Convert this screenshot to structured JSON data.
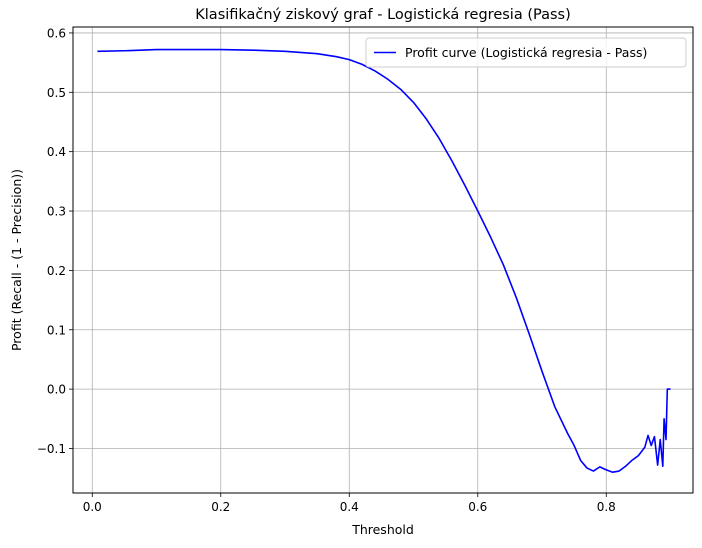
{
  "chart_data": {
    "type": "line",
    "title": "Klasifikačný ziskový graf - Logistická regresia (Pass)",
    "xlabel": "Threshold",
    "ylabel": "Profit (Recall - (1 - Precision))",
    "xlim": [
      -0.03,
      0.935
    ],
    "ylim": [
      -0.175,
      0.61
    ],
    "xticks": [
      0.0,
      0.2,
      0.4,
      0.6,
      0.8
    ],
    "xtick_labels": [
      "0.0",
      "0.2",
      "0.4",
      "0.6",
      "0.8"
    ],
    "yticks": [
      -0.1,
      0.0,
      0.1,
      0.2,
      0.3,
      0.4,
      0.5,
      0.6
    ],
    "ytick_labels": [
      "−0.1",
      "0.0",
      "0.1",
      "0.2",
      "0.3",
      "0.4",
      "0.5",
      "0.6"
    ],
    "grid": true,
    "legend_position": "top-right",
    "series": [
      {
        "name": "Profit curve (Logistická regresia - Pass)",
        "color": "#0000ff",
        "points": [
          [
            0.008,
            0.569
          ],
          [
            0.05,
            0.57
          ],
          [
            0.1,
            0.572
          ],
          [
            0.15,
            0.572
          ],
          [
            0.2,
            0.572
          ],
          [
            0.25,
            0.571
          ],
          [
            0.3,
            0.569
          ],
          [
            0.35,
            0.565
          ],
          [
            0.38,
            0.56
          ],
          [
            0.4,
            0.555
          ],
          [
            0.42,
            0.547
          ],
          [
            0.44,
            0.536
          ],
          [
            0.46,
            0.522
          ],
          [
            0.48,
            0.505
          ],
          [
            0.5,
            0.483
          ],
          [
            0.52,
            0.455
          ],
          [
            0.54,
            0.422
          ],
          [
            0.56,
            0.384
          ],
          [
            0.58,
            0.343
          ],
          [
            0.6,
            0.3
          ],
          [
            0.62,
            0.256
          ],
          [
            0.64,
            0.209
          ],
          [
            0.66,
            0.154
          ],
          [
            0.68,
            0.093
          ],
          [
            0.7,
            0.03
          ],
          [
            0.72,
            -0.03
          ],
          [
            0.74,
            -0.075
          ],
          [
            0.75,
            -0.095
          ],
          [
            0.76,
            -0.12
          ],
          [
            0.77,
            -0.133
          ],
          [
            0.78,
            -0.138
          ],
          [
            0.79,
            -0.131
          ],
          [
            0.8,
            -0.136
          ],
          [
            0.81,
            -0.14
          ],
          [
            0.82,
            -0.138
          ],
          [
            0.83,
            -0.13
          ],
          [
            0.84,
            -0.12
          ],
          [
            0.85,
            -0.112
          ],
          [
            0.86,
            -0.098
          ],
          [
            0.865,
            -0.078
          ],
          [
            0.87,
            -0.095
          ],
          [
            0.875,
            -0.08
          ],
          [
            0.88,
            -0.128
          ],
          [
            0.884,
            -0.085
          ],
          [
            0.888,
            -0.13
          ],
          [
            0.89,
            -0.05
          ],
          [
            0.893,
            -0.085
          ],
          [
            0.895,
            0.0
          ],
          [
            0.9,
            0.0
          ]
        ]
      }
    ]
  }
}
